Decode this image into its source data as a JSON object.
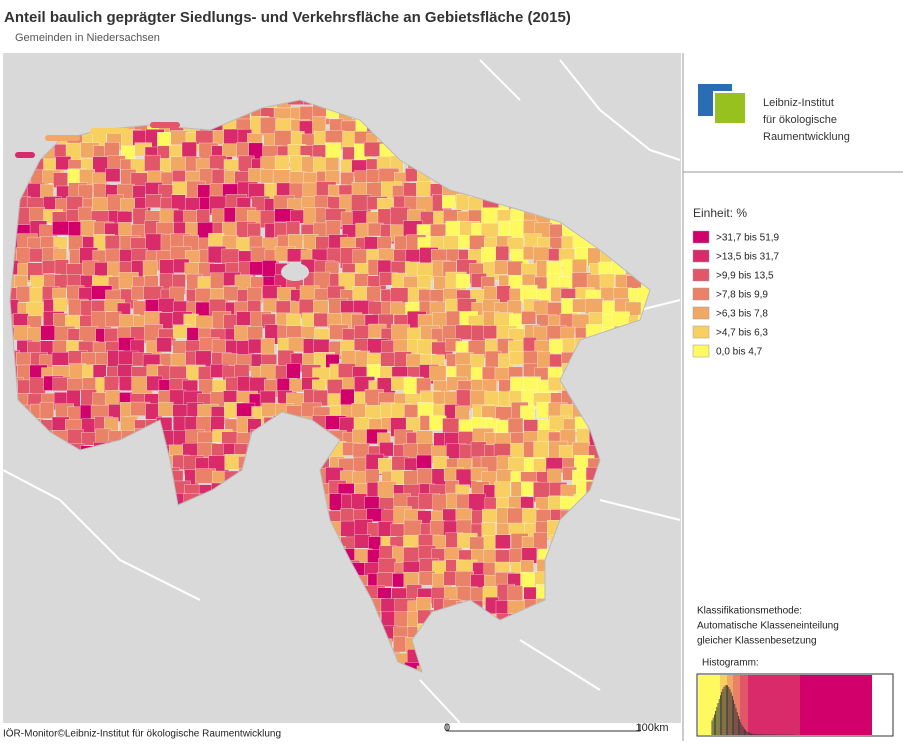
{
  "header": {
    "title": "Anteil baulich geprägter Siedlungs- und Verkehrsfläche an Gebietsfläche (2015)",
    "subtitle": "Gemeinden in Niedersachsen"
  },
  "logo": {
    "lines": [
      "Leibniz-Institut",
      "für ökologische",
      "Raumentwicklung"
    ]
  },
  "legend": {
    "unit": "Einheit: %",
    "classes": [
      {
        "label": ">31,7 bis 51,9",
        "color": "#d1006b"
      },
      {
        "label": ">13,5 bis 31,7",
        "color": "#d92a6a"
      },
      {
        "label": ">9,9 bis 13,5",
        "color": "#e2566a"
      },
      {
        "label": ">7,8 bis 9,9",
        "color": "#ea8268"
      },
      {
        "label": ">6,3 bis 7,8",
        "color": "#f1a865"
      },
      {
        "label": ">4,7 bis 6,3",
        "color": "#f8d062"
      },
      {
        "label": "0,0 bis 4,7",
        "color": "#fdf95f"
      }
    ]
  },
  "classification": {
    "lines": [
      "Klassifikationsmethode:",
      "Automatische Klasseneinteilung",
      "gleicher Klassenbesetzung"
    ]
  },
  "histogram": {
    "label": "Histogramm:"
  },
  "footer": {
    "credit": "IÖR-Monitor©Leibniz-Institut für ökologische Raumentwicklung"
  },
  "scale": {
    "start": "0",
    "end": "100km"
  }
}
